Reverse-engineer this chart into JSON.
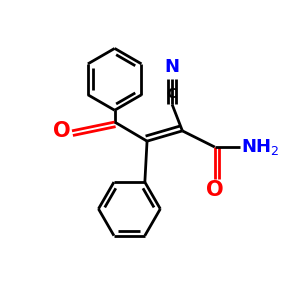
{
  "bg_color": "#ffffff",
  "line_color": "#000000",
  "lw": 2.0,
  "fig_w": 3.0,
  "fig_h": 3.0,
  "dpi": 100,
  "xlim": [
    0,
    10
  ],
  "ylim": [
    0,
    10
  ]
}
